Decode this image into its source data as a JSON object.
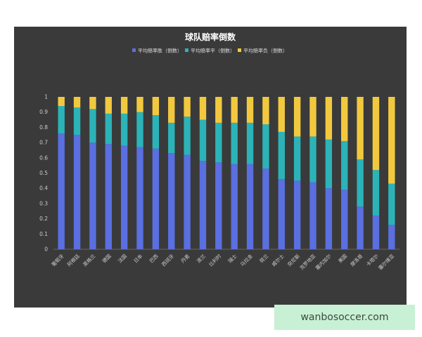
{
  "watermark": "wanbosoccer.com",
  "colors": {
    "background": "#3a3a3a",
    "win": "#5a6fe0",
    "draw": "#2bb3b8",
    "loss": "#f2c93e",
    "axis": "#cccccc"
  },
  "chart_data": {
    "type": "bar",
    "stacked": true,
    "title": "球队赔率倒数",
    "ylim": [
      0,
      1
    ],
    "yticks": [
      0,
      0.1,
      0.2,
      0.3,
      0.4,
      0.5,
      0.6,
      0.7,
      0.8,
      0.9,
      1
    ],
    "legend_position": "top",
    "categories": [
      "葡萄牙",
      "阿根廷",
      "英格兰",
      "德国",
      "法国",
      "日本",
      "巴西",
      "西班牙",
      "丹麦",
      "波兰",
      "比利时",
      "瑞士",
      "乌拉圭",
      "荷兰",
      "威尔士",
      "突尼斯",
      "克罗地亚",
      "塞内加尔",
      "美国",
      "摩洛哥",
      "卡塔尔",
      "塞尔维亚"
    ],
    "series": [
      {
        "name": "平均赔率胜（倒数）",
        "color": "#5a6fe0",
        "values": [
          0.76,
          0.75,
          0.7,
          0.69,
          0.68,
          0.67,
          0.66,
          0.63,
          0.62,
          0.58,
          0.57,
          0.56,
          0.56,
          0.53,
          0.46,
          0.45,
          0.44,
          0.4,
          0.39,
          0.28,
          0.22,
          0.16
        ]
      },
      {
        "name": "平均赔率平（倒数）",
        "color": "#2bb3b8",
        "values": [
          0.18,
          0.18,
          0.22,
          0.2,
          0.21,
          0.23,
          0.22,
          0.2,
          0.25,
          0.27,
          0.26,
          0.27,
          0.27,
          0.29,
          0.31,
          0.29,
          0.3,
          0.32,
          0.32,
          0.31,
          0.3,
          0.27
        ]
      },
      {
        "name": "平均赔率负（倒数）",
        "color": "#f2c93e",
        "values": [
          0.06,
          0.07,
          0.08,
          0.11,
          0.11,
          0.1,
          0.12,
          0.17,
          0.13,
          0.15,
          0.17,
          0.17,
          0.17,
          0.18,
          0.23,
          0.26,
          0.26,
          0.28,
          0.29,
          0.41,
          0.48,
          0.57
        ]
      }
    ]
  }
}
